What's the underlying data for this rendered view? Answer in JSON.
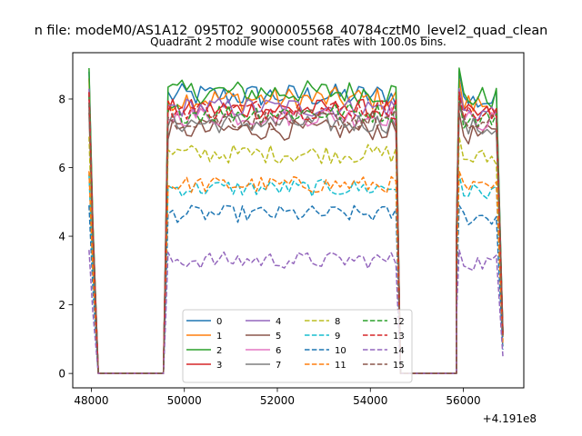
{
  "chart_data": {
    "type": "line",
    "suptitle": "n file: modeM0/AS1A12_095T02_9000005568_40784cztM0_level2_quad_clean",
    "title": "Quadrant 2 module wise count rates with 100.0s bins.",
    "xlabel": "",
    "ylabel": "",
    "offset_text": "+4.191e8",
    "xlim": [
      47600,
      57300
    ],
    "ylim": [
      -0.42,
      9.35
    ],
    "xticks": [
      48000,
      50000,
      52000,
      54000,
      56000
    ],
    "xtick_labels": [
      "48000",
      "50000",
      "52000",
      "54000",
      "56000"
    ],
    "yticks": [
      0,
      2,
      4,
      6,
      8
    ],
    "ytick_labels": [
      "0",
      "2",
      "4",
      "6",
      "8"
    ],
    "grid": false,
    "legend_placement": "lower center",
    "segments": [
      {
        "start": 47950,
        "end": 48150
      },
      {
        "start": 48150,
        "end": 49550
      },
      {
        "start": 49550,
        "end": 54650
      },
      {
        "start": 54650,
        "end": 55850
      },
      {
        "start": 55850,
        "end": 56850
      }
    ],
    "series": [
      {
        "name": "0",
        "color": "#1f77b4",
        "dash": "solid",
        "level": 8.1,
        "first": 8.8,
        "noise": 0.35
      },
      {
        "name": "1",
        "color": "#ff7f0e",
        "dash": "solid",
        "level": 8.0,
        "first": 8.6,
        "noise": 0.35
      },
      {
        "name": "2",
        "color": "#2ca02c",
        "dash": "solid",
        "level": 8.2,
        "first": 8.9,
        "noise": 0.35
      },
      {
        "name": "3",
        "color": "#d62728",
        "dash": "solid",
        "level": 7.7,
        "first": 8.2,
        "noise": 0.3
      },
      {
        "name": "4",
        "color": "#9467bd",
        "dash": "solid",
        "level": 7.75,
        "first": 8.3,
        "noise": 0.3
      },
      {
        "name": "5",
        "color": "#8c564b",
        "dash": "solid",
        "level": 7.1,
        "first": 7.6,
        "noise": 0.3
      },
      {
        "name": "6",
        "color": "#e377c2",
        "dash": "solid",
        "level": 7.5,
        "first": 8.0,
        "noise": 0.3
      },
      {
        "name": "7",
        "color": "#7f7f7f",
        "dash": "solid",
        "level": 7.3,
        "first": 7.8,
        "noise": 0.3
      },
      {
        "name": "8",
        "color": "#bcbd22",
        "dash": "dashed",
        "level": 6.4,
        "first": 6.9,
        "noise": 0.28
      },
      {
        "name": "9",
        "color": "#17becf",
        "dash": "dashed",
        "level": 5.4,
        "first": 5.8,
        "noise": 0.25
      },
      {
        "name": "10",
        "color": "#1f77b4",
        "dash": "dashed",
        "level": 4.65,
        "first": 4.9,
        "noise": 0.25
      },
      {
        "name": "11",
        "color": "#ff7f0e",
        "dash": "dashed",
        "level": 5.5,
        "first": 5.9,
        "noise": 0.25
      },
      {
        "name": "12",
        "color": "#2ca02c",
        "dash": "dashed",
        "level": 7.6,
        "first": 8.1,
        "noise": 0.3
      },
      {
        "name": "13",
        "color": "#d62728",
        "dash": "dashed",
        "level": 7.7,
        "first": 8.2,
        "noise": 0.3
      },
      {
        "name": "14",
        "color": "#9467bd",
        "dash": "dashed",
        "level": 3.3,
        "first": 3.6,
        "noise": 0.25
      },
      {
        "name": "15",
        "color": "#8c564b",
        "dash": "dashed",
        "level": 7.4,
        "first": 7.9,
        "noise": 0.3
      }
    ]
  }
}
